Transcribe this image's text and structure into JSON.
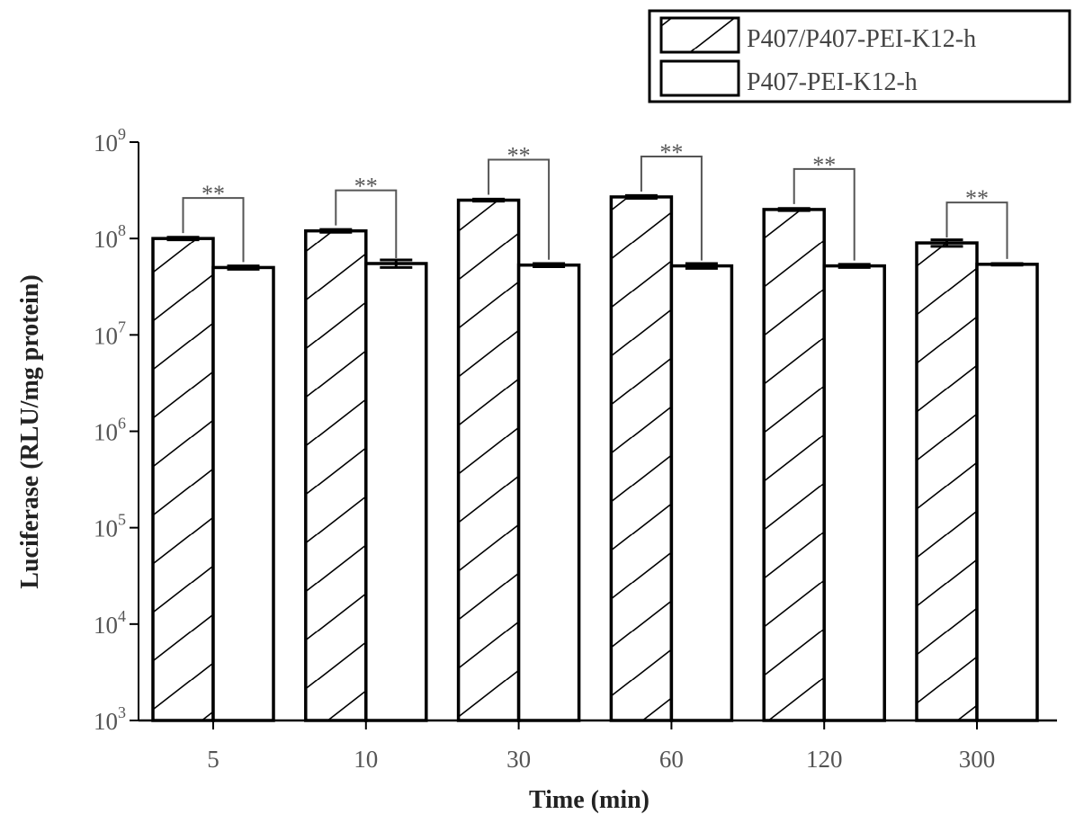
{
  "chart_data": {
    "type": "bar",
    "xlabel": "Time (min)",
    "ylabel": "Luciferase (RLU/mg protein)",
    "yscale": "log",
    "ylim": [
      1000,
      1000000000
    ],
    "ytick_base": "10",
    "ytick_exponents": [
      "3",
      "4",
      "5",
      "6",
      "7",
      "8",
      "9"
    ],
    "categories": [
      "5",
      "10",
      "30",
      "60",
      "120",
      "300"
    ],
    "series": [
      {
        "name": "P407/P407-PEI-K12-h",
        "pattern": "hatched",
        "values": [
          100000000,
          120000000,
          250000000,
          270000000,
          200000000,
          90000000
        ],
        "errors": [
          3000000,
          4000000,
          6000000,
          9000000,
          5000000,
          7000000
        ]
      },
      {
        "name": "P407-PEI-K12-h",
        "pattern": "open",
        "values": [
          50000000,
          55000000,
          53000000,
          52000000,
          52000000,
          54000000
        ],
        "errors": [
          2000000,
          5000000,
          2000000,
          3000000,
          2000000,
          1000000
        ]
      }
    ],
    "significance": [
      "**",
      "**",
      "**",
      "**",
      "**",
      "**"
    ],
    "legend_position": "top-right",
    "grid": false,
    "colors": {
      "stroke": "#000000",
      "fill": "#ffffff",
      "text": "#555555"
    }
  }
}
